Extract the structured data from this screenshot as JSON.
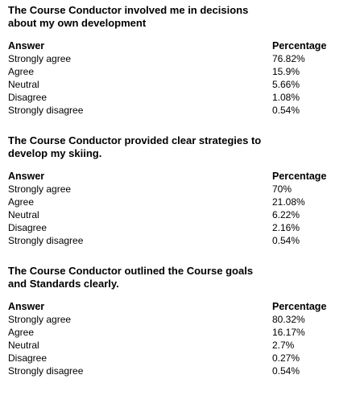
{
  "sections": [
    {
      "title": "The Course Conductor involved me in decisions about my own development",
      "header": {
        "answer": "Answer",
        "percentage": "Percentage"
      },
      "rows": [
        {
          "answer": "Strongly agree",
          "percentage": "76.82%"
        },
        {
          "answer": "Agree",
          "percentage": "15.9%"
        },
        {
          "answer": "Neutral",
          "percentage": "5.66%"
        },
        {
          "answer": "Disagree",
          "percentage": "1.08%"
        },
        {
          "answer": "Strongly disagree",
          "percentage": "0.54%"
        }
      ]
    },
    {
      "title": "The Course Conductor provided clear strategies to develop my skiing.",
      "header": {
        "answer": "Answer",
        "percentage": "Percentage"
      },
      "rows": [
        {
          "answer": "Strongly agree",
          "percentage": "70%"
        },
        {
          "answer": "Agree",
          "percentage": "21.08%"
        },
        {
          "answer": "Neutral",
          "percentage": "6.22%"
        },
        {
          "answer": "Disagree",
          "percentage": "2.16%"
        },
        {
          "answer": "Strongly disagree",
          "percentage": "0.54%"
        }
      ]
    },
    {
      "title": "The Course Conductor outlined the Course goals and Standards clearly.",
      "header": {
        "answer": "Answer",
        "percentage": "Percentage"
      },
      "rows": [
        {
          "answer": "Strongly agree",
          "percentage": "80.32%"
        },
        {
          "answer": "Agree",
          "percentage": "16.17%"
        },
        {
          "answer": "Neutral",
          "percentage": "2.7%"
        },
        {
          "answer": "Disagree",
          "percentage": "0.27%"
        },
        {
          "answer": "Strongly disagree",
          "percentage": "0.54%"
        }
      ]
    }
  ]
}
